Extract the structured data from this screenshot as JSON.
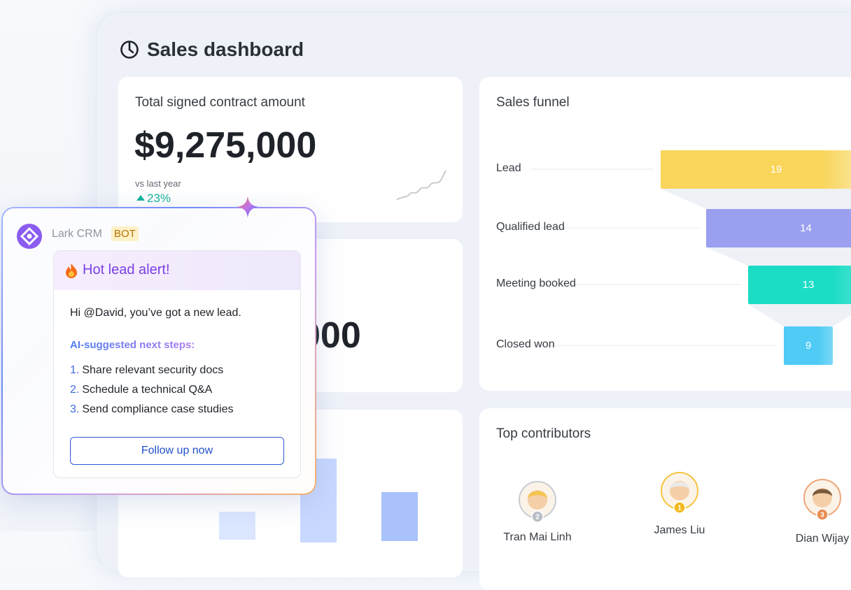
{
  "header": {
    "title": "Sales dashboard"
  },
  "contract_card": {
    "title": "Total signed contract amount",
    "amount": "$9,275,000",
    "comparison_label": "vs last year",
    "change": "23%"
  },
  "second_card": {
    "amount_fragment": "000"
  },
  "funnel": {
    "title": "Sales funnel",
    "stages": [
      {
        "label": "Lead",
        "value": 19,
        "color": "#f9d55a"
      },
      {
        "label": "Qualified lead",
        "value": 14,
        "color": "#9a9ff0"
      },
      {
        "label": "Meeting booked",
        "value": 13,
        "color": "#1bdcc4"
      },
      {
        "label": "Closed won",
        "value": 9,
        "color": "#4fcbf5"
      }
    ]
  },
  "contributors": {
    "title": "Top contributors",
    "people": [
      {
        "name": "Tran Mai Linh",
        "rank": 2
      },
      {
        "name": "James Liu",
        "rank": 1
      },
      {
        "name": "Dian Wijay",
        "rank": 3
      }
    ]
  },
  "bot_message": {
    "app": "Lark CRM",
    "badge": "BOT",
    "alert_title": "Hot lead alert!",
    "greeting": "Hi @David, you’ve got a new lead.",
    "steps_heading": "AI-suggested next steps:",
    "steps": [
      {
        "number": "1.",
        "text": "Share relevant security docs"
      },
      {
        "number": "2.",
        "text": "Schedule a technical Q&A"
      },
      {
        "number": "3.",
        "text": "Send compliance case studies"
      }
    ],
    "button": "Follow up now"
  }
}
